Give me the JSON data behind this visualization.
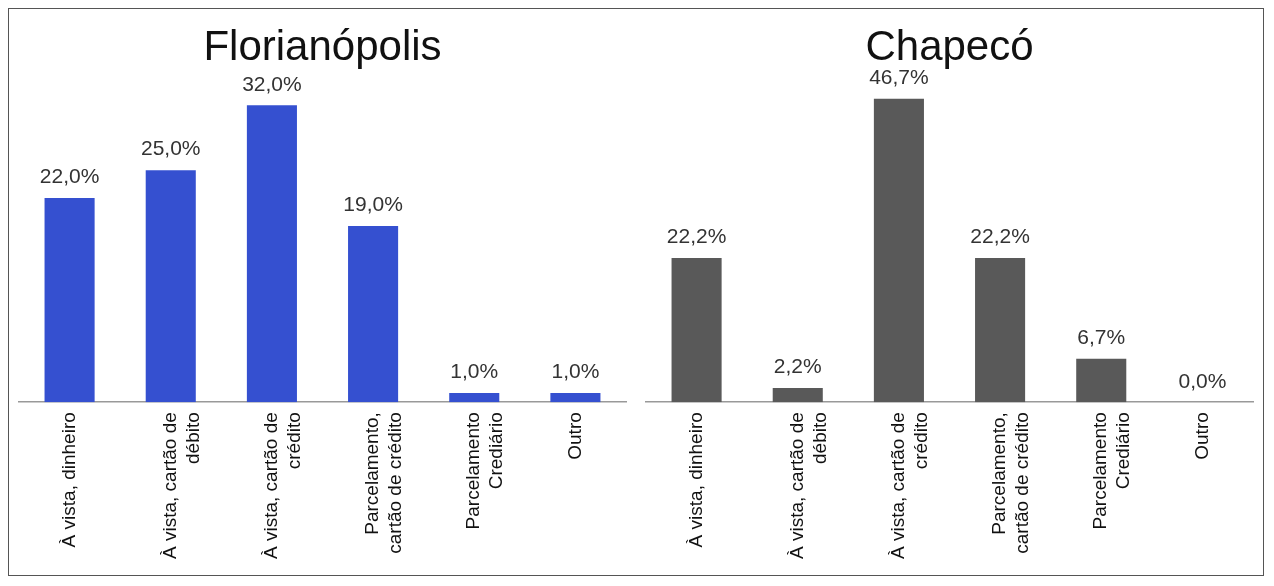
{
  "chart_data": [
    {
      "type": "bar",
      "title": "Florianópolis",
      "categories": [
        "À vista, dinheiro",
        "À vista, cartão de débito",
        "À vista, cartão de crédito",
        "Parcelamento, cartão de crédito",
        "Parcelamento Crediário",
        "Outro"
      ],
      "values": [
        22.0,
        25.0,
        32.0,
        19.0,
        1.0,
        1.0
      ],
      "value_labels": [
        "22,0%",
        "25,0%",
        "32,0%",
        "19,0%",
        "1,0%",
        "1,0%"
      ],
      "color": "#3550d0",
      "tick_labels": "x",
      "grid": false,
      "legend": false
    },
    {
      "type": "bar",
      "title": "Chapecó",
      "categories": [
        "À vista, dinheiro",
        "À vista, cartão de débito",
        "À vista, cartão de crédito",
        "Parcelamento, cartão de crédito",
        "Parcelamento Crediário",
        "Outro"
      ],
      "values": [
        22.2,
        2.2,
        46.7,
        22.2,
        6.7,
        0.0
      ],
      "value_labels": [
        "22,2%",
        "2,2%",
        "46,7%",
        "22,2%",
        "6,7%",
        "0,0%"
      ],
      "color": "#595959",
      "tick_labels": "x",
      "grid": false,
      "legend": false
    }
  ]
}
